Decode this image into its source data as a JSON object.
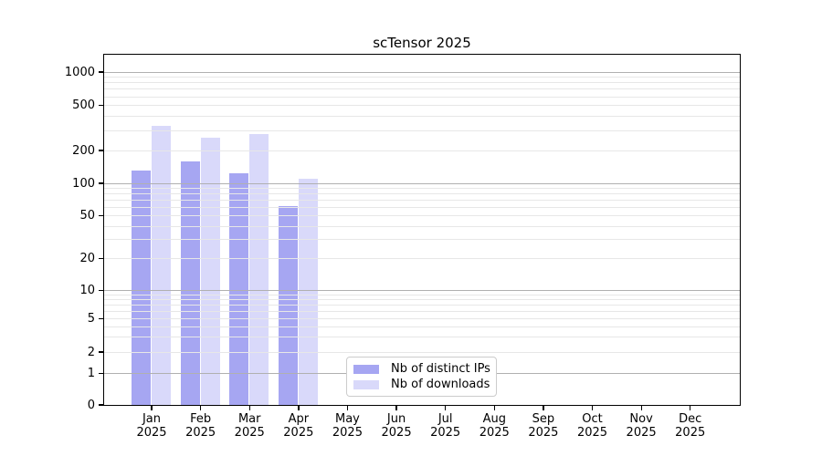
{
  "chart_data": {
    "type": "bar",
    "title": "scTensor 2025",
    "x_categories": [
      "Jan",
      "Feb",
      "Mar",
      "Apr",
      "May",
      "Jun",
      "Jul",
      "Aug",
      "Sep",
      "Oct",
      "Nov",
      "Dec"
    ],
    "x_year_label": "2025",
    "series": [
      {
        "name": "Nb of distinct IPs",
        "color": "#a6a6f2",
        "values": [
          132,
          160,
          125,
          62,
          0,
          0,
          0,
          0,
          0,
          0,
          0,
          0
        ]
      },
      {
        "name": "Nb of downloads",
        "color": "#d9d9fa",
        "values": [
          333,
          264,
          283,
          112,
          0,
          0,
          0,
          0,
          0,
          0,
          0,
          0
        ]
      }
    ],
    "y_scale": "symlog",
    "y_ticks": [
      0,
      1,
      2,
      5,
      10,
      20,
      50,
      100,
      200,
      500,
      1000
    ],
    "ylim": [
      0,
      1430
    ],
    "grid": "horizontal, gray majors at decades, light minors at log subdivisions",
    "legend_position": "lower center",
    "axis_color": "#000000",
    "grid_major_color": "#b0b0b0",
    "grid_minor_color": "#e7e7e7"
  }
}
